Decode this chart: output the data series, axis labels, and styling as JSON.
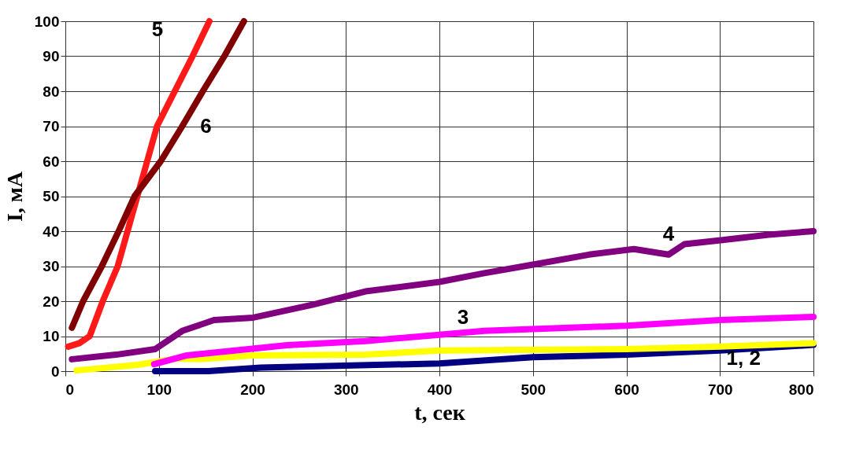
{
  "chart_data": {
    "type": "line",
    "xlabel": "t, сек",
    "ylabel": "I, мА",
    "xlim": [
      0,
      800
    ],
    "ylim": [
      0,
      100
    ],
    "xticks": [
      0,
      100,
      200,
      300,
      400,
      500,
      600,
      700,
      800
    ],
    "yticks": [
      0,
      10,
      20,
      30,
      40,
      50,
      60,
      70,
      80,
      90,
      100
    ],
    "grid": true,
    "line_style": "solid",
    "series": [
      {
        "color": "#000080",
        "x": [
          96,
          153,
          209,
          400,
          500,
          600,
          700,
          800
        ],
        "values": [
          0,
          0,
          1,
          2.2,
          4,
          4.7,
          5.9,
          7.5
        ]
      },
      {
        "color": "#ffff00",
        "x": [
          12,
          77,
          119,
          142,
          201,
          321,
          400,
          600,
          700,
          800
        ],
        "values": [
          0.2,
          1.8,
          3.6,
          3.4,
          4.5,
          4.7,
          5.9,
          6.3,
          7,
          8
        ]
      },
      {
        "name": "3",
        "color": "#ff00ff",
        "x": [
          95,
          130,
          237,
          321,
          400,
          448,
          600,
          700,
          800
        ],
        "values": [
          2,
          4.5,
          7.4,
          8.6,
          10.4,
          11.5,
          13,
          14.6,
          15.5
        ]
      },
      {
        "name": "4",
        "color": "#800080",
        "x": [
          7,
          54,
          96,
          125,
          159,
          201,
          265,
          321,
          400,
          448,
          499,
          560,
          608,
          645,
          662,
          701,
          752,
          800
        ],
        "values": [
          3.4,
          4.7,
          6.3,
          11.5,
          14.6,
          15.3,
          19,
          22.8,
          25.5,
          28,
          30.4,
          33.3,
          34.9,
          33.3,
          36.3,
          37.4,
          39,
          40
        ]
      },
      {
        "name": "5",
        "color": "#ff1a1a",
        "x": [
          3,
          15,
          26,
          40,
          56,
          77,
          98,
          117,
          136,
          154
        ],
        "values": [
          7,
          8,
          10,
          20,
          30,
          50,
          70,
          80,
          90,
          100
        ]
      },
      {
        "name": "6",
        "color": "#800000",
        "x": [
          7,
          19,
          39,
          57,
          74,
          102,
          125,
          147,
          170,
          191
        ],
        "values": [
          12.4,
          20,
          30,
          40,
          50,
          60,
          70,
          80,
          90,
          100
        ]
      }
    ],
    "annotations": [
      "1, 2"
    ]
  }
}
